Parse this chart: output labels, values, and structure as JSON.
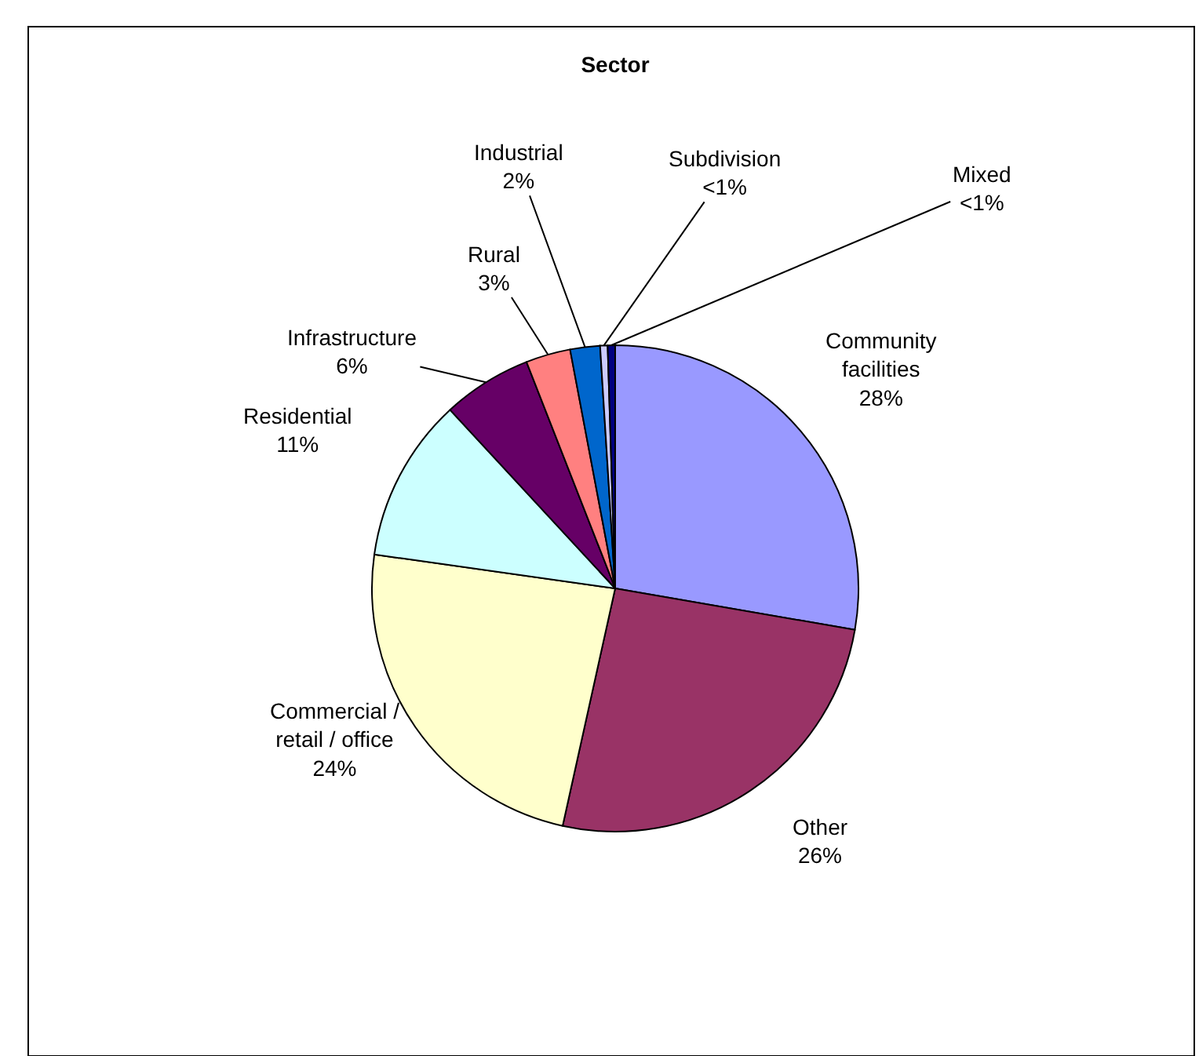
{
  "chart_data": {
    "type": "pie",
    "title": "Sector",
    "categories": [
      "Community facilities",
      "Other",
      "Commercial / retail / office",
      "Residential",
      "Infrastructure",
      "Rural",
      "Industrial",
      "Subdivision",
      "Mixed"
    ],
    "values": [
      28,
      26,
      24,
      11,
      6,
      3,
      2,
      0.5,
      0.5
    ],
    "value_labels": [
      "28%",
      "26%",
      "24%",
      "11%",
      "6%",
      "3%",
      "2%",
      "<1%",
      "<1%"
    ],
    "colors": [
      "#9999ff",
      "#993366",
      "#ffffcc",
      "#ccffff",
      "#660066",
      "#ff8080",
      "#0066cc",
      "#ccccff",
      "#000080"
    ],
    "legend": false
  }
}
